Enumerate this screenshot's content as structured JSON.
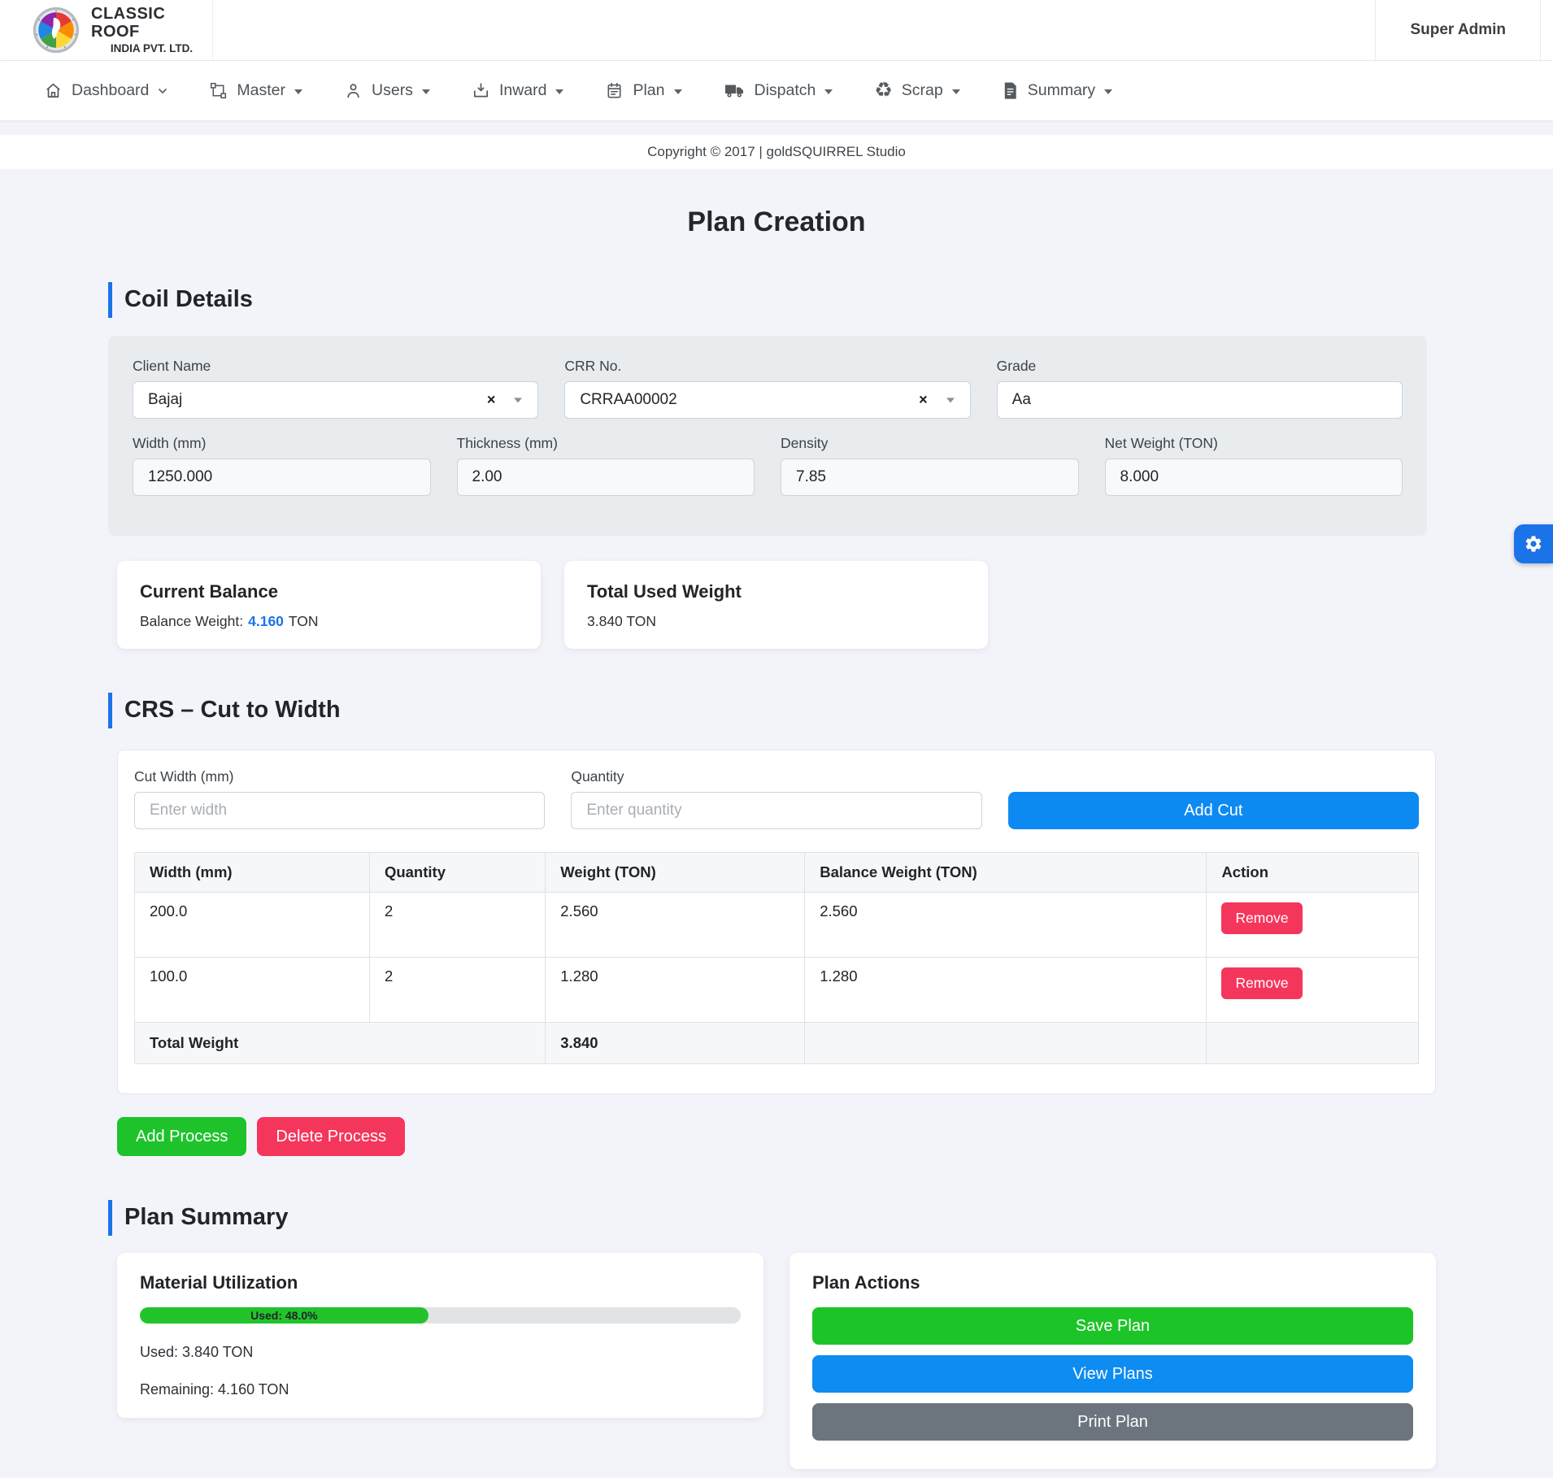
{
  "header": {
    "brand_line1": "CLASSIC ROOF",
    "brand_line2": "INDIA PVT. LTD.",
    "user": "Super Admin"
  },
  "nav": {
    "items": [
      {
        "label": "Dashboard",
        "icon": "home-icon"
      },
      {
        "label": "Master",
        "icon": "bounding-box-icon"
      },
      {
        "label": "Users",
        "icon": "person-icon"
      },
      {
        "label": "Inward",
        "icon": "tray-download-icon"
      },
      {
        "label": "Plan",
        "icon": "clipboard-icon"
      },
      {
        "label": "Dispatch",
        "icon": "truck-icon"
      },
      {
        "label": "Scrap",
        "icon": "recycle-icon"
      },
      {
        "label": "Summary",
        "icon": "document-icon"
      }
    ]
  },
  "footer": {
    "copyright": "Copyright © 2017 | goldSQUIRREL Studio"
  },
  "page": {
    "title": "Plan Creation"
  },
  "coil": {
    "section_title": "Coil Details",
    "client": {
      "label": "Client Name",
      "value": "Bajaj"
    },
    "crr": {
      "label": "CRR No.",
      "value": "CRRAA00002"
    },
    "grade": {
      "label": "Grade",
      "value": "Aa"
    },
    "width": {
      "label": "Width (mm)",
      "value": "1250.000"
    },
    "thickness": {
      "label": "Thickness (mm)",
      "value": "2.00"
    },
    "density": {
      "label": "Density",
      "value": "7.85"
    },
    "net_weight": {
      "label": "Net Weight (TON)",
      "value": "8.000"
    }
  },
  "cards": {
    "current_balance": {
      "title": "Current Balance",
      "label": "Balance Weight:",
      "value": "4.160",
      "unit": "TON"
    },
    "total_used": {
      "title": "Total Used Weight",
      "value": "3.840 TON"
    }
  },
  "crs": {
    "section_title": "CRS – Cut to Width",
    "cut_width": {
      "label": "Cut Width (mm)",
      "placeholder": "Enter width"
    },
    "quantity": {
      "label": "Quantity",
      "placeholder": "Enter quantity"
    },
    "add_cut_label": "Add Cut",
    "table": {
      "headers": [
        "Width (mm)",
        "Quantity",
        "Weight (TON)",
        "Balance Weight (TON)",
        "Action"
      ],
      "rows": [
        {
          "width": "200.0",
          "quantity": "2",
          "weight": "2.560",
          "balance": "2.560",
          "action": "Remove"
        },
        {
          "width": "100.0",
          "quantity": "2",
          "weight": "1.280",
          "balance": "1.280",
          "action": "Remove"
        }
      ],
      "footer": {
        "label": "Total Weight",
        "total": "3.840"
      }
    }
  },
  "process": {
    "add_label": "Add Process",
    "delete_label": "Delete Process"
  },
  "plan_summary": {
    "section_title": "Plan Summary",
    "material": {
      "title": "Material Utilization",
      "progress_label": "Used: 48.0%",
      "progress_percent": 48,
      "used": "Used: 3.840 TON",
      "remaining": "Remaining: 4.160 TON"
    },
    "actions": {
      "title": "Plan Actions",
      "save_label": "Save Plan",
      "view_label": "View Plans",
      "print_label": "Print Plan"
    }
  },
  "colors": {
    "accent_blue": "#0d8af2",
    "heading_bar_blue": "#1a73e8",
    "green": "#1ec32b",
    "red": "#f5365c",
    "gray_button": "#6c757d",
    "page_background": "#f3f4fa",
    "panel_gray": "#e9ecef"
  }
}
